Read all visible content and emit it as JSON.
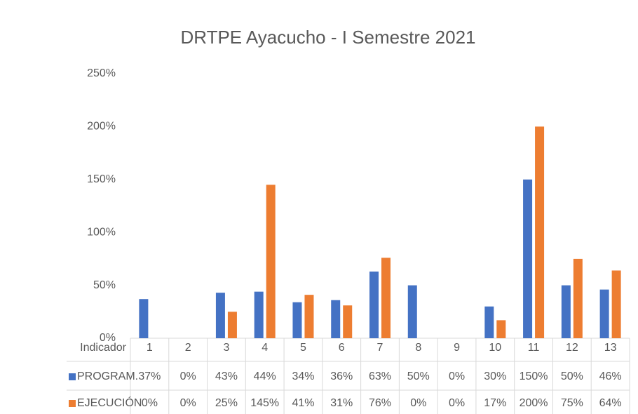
{
  "chart_data": {
    "type": "bar",
    "title": "DRTPE Ayacucho - I Semestre 2021",
    "x_label": "Indicador",
    "categories": [
      "1",
      "2",
      "3",
      "4",
      "5",
      "6",
      "7",
      "8",
      "9",
      "10",
      "11",
      "12",
      "13"
    ],
    "series": [
      {
        "name": "PROGRAM.",
        "color": "#4472c4",
        "values": [
          37,
          0,
          43,
          44,
          34,
          36,
          63,
          50,
          0,
          30,
          150,
          50,
          46
        ],
        "value_labels": [
          "37%",
          "0%",
          "43%",
          "44%",
          "34%",
          "36%",
          "63%",
          "50%",
          "0%",
          "30%",
          "150%",
          "50%",
          "46%"
        ]
      },
      {
        "name": "EJECUCIÓN",
        "color": "#ed7d31",
        "values": [
          0,
          0,
          25,
          145,
          41,
          31,
          76,
          0,
          0,
          17,
          200,
          75,
          64
        ],
        "value_labels": [
          "0%",
          "0%",
          "25%",
          "145%",
          "41%",
          "31%",
          "76%",
          "0%",
          "0%",
          "17%",
          "200%",
          "75%",
          "64%"
        ]
      }
    ],
    "ylim": [
      0,
      250
    ],
    "yticks": [
      {
        "value": 0,
        "label": "0%"
      },
      {
        "value": 50,
        "label": "50%"
      },
      {
        "value": 100,
        "label": "100%"
      },
      {
        "value": 150,
        "label": "150%"
      },
      {
        "value": 200,
        "label": "200%"
      },
      {
        "value": 250,
        "label": "250%"
      }
    ],
    "grid": false
  }
}
